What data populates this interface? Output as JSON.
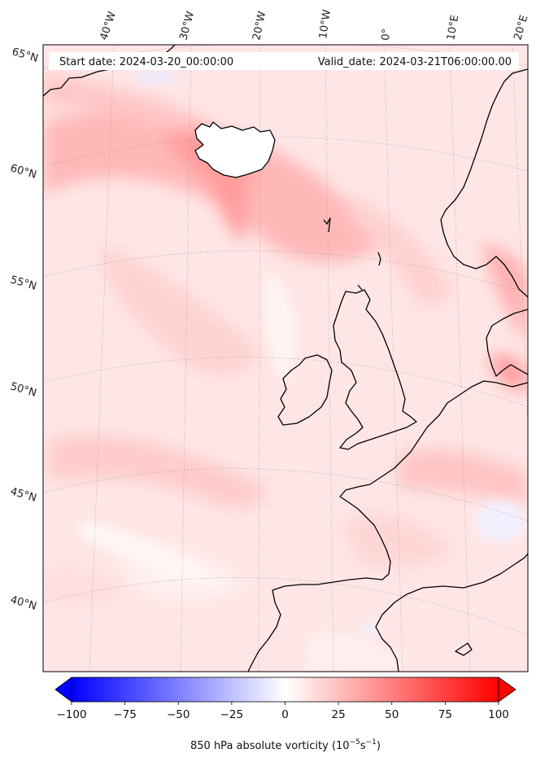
{
  "header": {
    "start_date": "Start date: 2024-03-20_00:00:00",
    "valid_date": "Valid_date: 2024-03-21T06:00:00.00"
  },
  "map": {
    "projection": "polar stereographic / lambert conformal",
    "field": "850 hPa absolute vorticity",
    "lon_labels": [
      "40°W",
      "30°W",
      "20°W",
      "10°W",
      "0°",
      "10°E",
      "20°E"
    ],
    "lat_labels": [
      "65°N",
      "60°N",
      "55°N",
      "50°N",
      "45°N",
      "40°N"
    ],
    "colormap": "bwr",
    "coastline_color": "#000000",
    "graticule": "dotted grey"
  },
  "colorbar": {
    "ticks": [
      "−100",
      "−75",
      "−50",
      "−25",
      "0",
      "25",
      "50",
      "75",
      "100"
    ],
    "title_main": "850 hPa absolute vorticity (10",
    "exp1": "−5",
    "mid": "s",
    "exp2": "−1",
    "title_end": ")",
    "min": -100,
    "max": 100,
    "extend": "both",
    "colors": {
      "low": "#0000ff",
      "mid": "#ffffff",
      "high": "#ff0000"
    }
  }
}
